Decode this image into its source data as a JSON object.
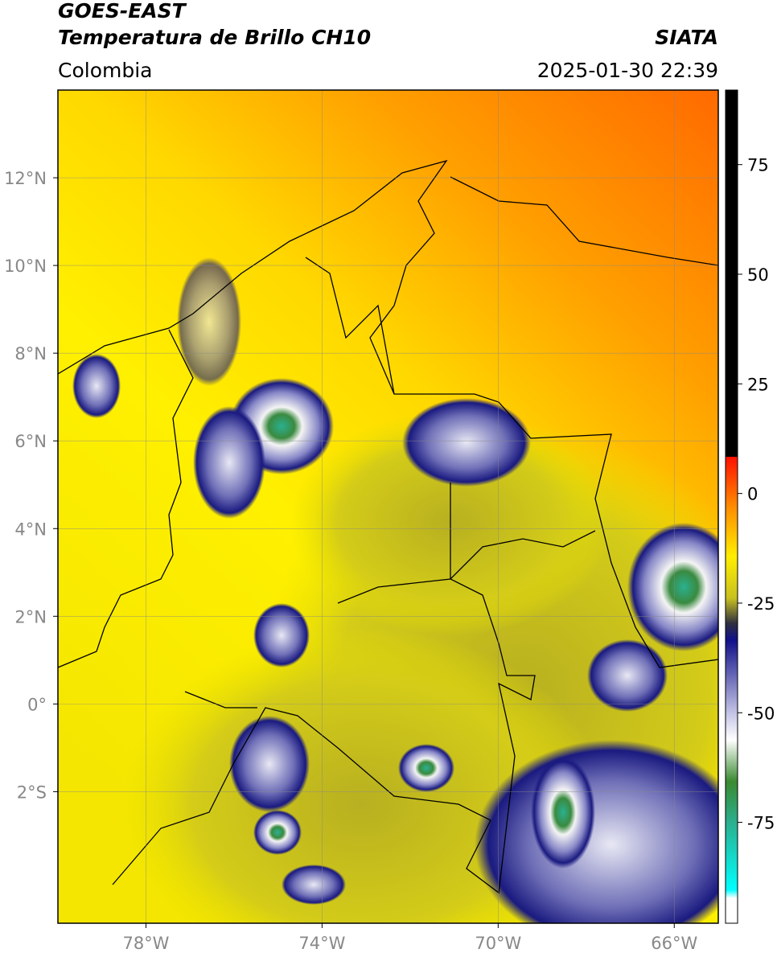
{
  "header": {
    "title": "GOES-EAST",
    "subtitle": "Temperatura de Brillo CH10",
    "source": "SIATA",
    "region": "Colombia",
    "datetime": "2025-01-30 22:39"
  },
  "map": {
    "xlim": [
      -80,
      -65
    ],
    "ylim": [
      -5,
      14
    ],
    "xticks": [
      {
        "value": -78,
        "label": "78°W"
      },
      {
        "value": -74,
        "label": "74°W"
      },
      {
        "value": -70,
        "label": "70°W"
      },
      {
        "value": -66,
        "label": "66°W"
      }
    ],
    "yticks": [
      {
        "value": 12,
        "label": "12°N"
      },
      {
        "value": 10,
        "label": "10°N"
      },
      {
        "value": 8,
        "label": "8°N"
      },
      {
        "value": 6,
        "label": "6°N"
      },
      {
        "value": 4,
        "label": "4°N"
      },
      {
        "value": 2,
        "label": "2°N"
      },
      {
        "value": 0,
        "label": "0°"
      },
      {
        "value": -2,
        "label": "2°S"
      }
    ],
    "grid": true
  },
  "colorbar": {
    "lim": [
      -98,
      92
    ],
    "ticks": [
      75,
      50,
      25,
      0,
      -25,
      -50,
      -75
    ]
  }
}
